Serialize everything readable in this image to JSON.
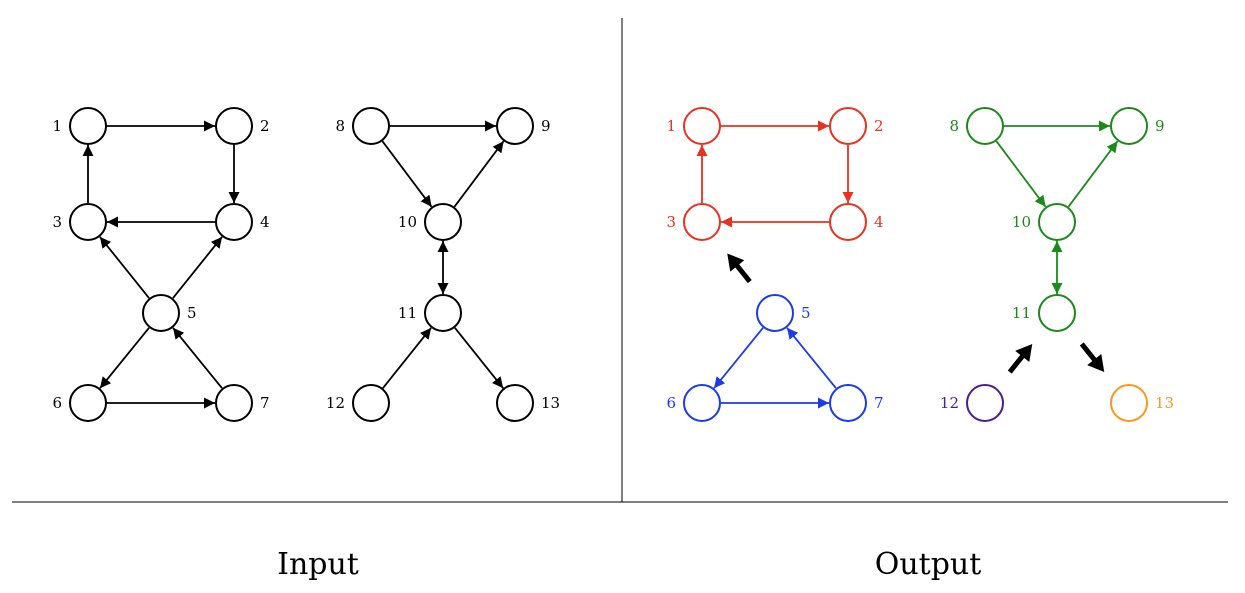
{
  "colors": {
    "black": "#000000",
    "red": "#e8321e",
    "blue": "#1a3be6",
    "green": "#1a8a1a",
    "purple": "#4b1f8a",
    "orange": "#f59a1a"
  },
  "captions": {
    "input": "Input",
    "output": "Output"
  },
  "panels": [
    {
      "id": "input",
      "nodes": [
        {
          "id": "1",
          "label": "1",
          "color": "black"
        },
        {
          "id": "2",
          "label": "2",
          "color": "black"
        },
        {
          "id": "3",
          "label": "3",
          "color": "black"
        },
        {
          "id": "4",
          "label": "4",
          "color": "black"
        },
        {
          "id": "5",
          "label": "5",
          "color": "black"
        },
        {
          "id": "6",
          "label": "6",
          "color": "black"
        },
        {
          "id": "7",
          "label": "7",
          "color": "black"
        },
        {
          "id": "8",
          "label": "8",
          "color": "black"
        },
        {
          "id": "9",
          "label": "9",
          "color": "black"
        },
        {
          "id": "10",
          "label": "10",
          "color": "black"
        },
        {
          "id": "11",
          "label": "11",
          "color": "black"
        },
        {
          "id": "12",
          "label": "12",
          "color": "black"
        },
        {
          "id": "13",
          "label": "13",
          "color": "black"
        }
      ],
      "edges": [
        {
          "from": "1",
          "to": "2",
          "color": "black"
        },
        {
          "from": "2",
          "to": "4",
          "color": "black"
        },
        {
          "from": "4",
          "to": "3",
          "color": "black"
        },
        {
          "from": "3",
          "to": "1",
          "color": "black"
        },
        {
          "from": "5",
          "to": "3",
          "color": "black"
        },
        {
          "from": "5",
          "to": "4",
          "color": "black"
        },
        {
          "from": "5",
          "to": "6",
          "color": "black"
        },
        {
          "from": "6",
          "to": "7",
          "color": "black"
        },
        {
          "from": "7",
          "to": "5",
          "color": "black"
        },
        {
          "from": "8",
          "to": "9",
          "color": "black"
        },
        {
          "from": "8",
          "to": "10",
          "color": "black"
        },
        {
          "from": "10",
          "to": "9",
          "color": "black"
        },
        {
          "from": "10",
          "to": "11",
          "color": "black",
          "bidirectional": true
        },
        {
          "from": "12",
          "to": "11",
          "color": "black"
        },
        {
          "from": "11",
          "to": "13",
          "color": "black"
        }
      ]
    },
    {
      "id": "output",
      "nodes": [
        {
          "id": "1",
          "label": "1",
          "color": "red"
        },
        {
          "id": "2",
          "label": "2",
          "color": "red"
        },
        {
          "id": "3",
          "label": "3",
          "color": "red"
        },
        {
          "id": "4",
          "label": "4",
          "color": "red"
        },
        {
          "id": "5",
          "label": "5",
          "color": "blue"
        },
        {
          "id": "6",
          "label": "6",
          "color": "blue"
        },
        {
          "id": "7",
          "label": "7",
          "color": "blue"
        },
        {
          "id": "8",
          "label": "8",
          "color": "green"
        },
        {
          "id": "9",
          "label": "9",
          "color": "green"
        },
        {
          "id": "10",
          "label": "10",
          "color": "green"
        },
        {
          "id": "11",
          "label": "11",
          "color": "green"
        },
        {
          "id": "12",
          "label": "12",
          "color": "purple"
        },
        {
          "id": "13",
          "label": "13",
          "color": "orange"
        }
      ],
      "edges": [
        {
          "from": "1",
          "to": "2",
          "color": "red"
        },
        {
          "from": "2",
          "to": "4",
          "color": "red"
        },
        {
          "from": "4",
          "to": "3",
          "color": "red"
        },
        {
          "from": "3",
          "to": "1",
          "color": "red"
        },
        {
          "from": "5",
          "to": "6",
          "color": "blue"
        },
        {
          "from": "6",
          "to": "7",
          "color": "blue"
        },
        {
          "from": "7",
          "to": "5",
          "color": "blue"
        },
        {
          "from": "8",
          "to": "9",
          "color": "green"
        },
        {
          "from": "8",
          "to": "10",
          "color": "green"
        },
        {
          "from": "10",
          "to": "9",
          "color": "green"
        },
        {
          "from": "10",
          "to": "11",
          "color": "green",
          "bidirectional": true
        }
      ],
      "condensation_arrows": [
        {
          "from": "5",
          "to": "3",
          "meaning": "blue component to red component"
        },
        {
          "from": "12",
          "to": "11",
          "meaning": "purple component to green component"
        },
        {
          "from": "11",
          "to": "13",
          "meaning": "green component to orange component"
        }
      ]
    }
  ]
}
